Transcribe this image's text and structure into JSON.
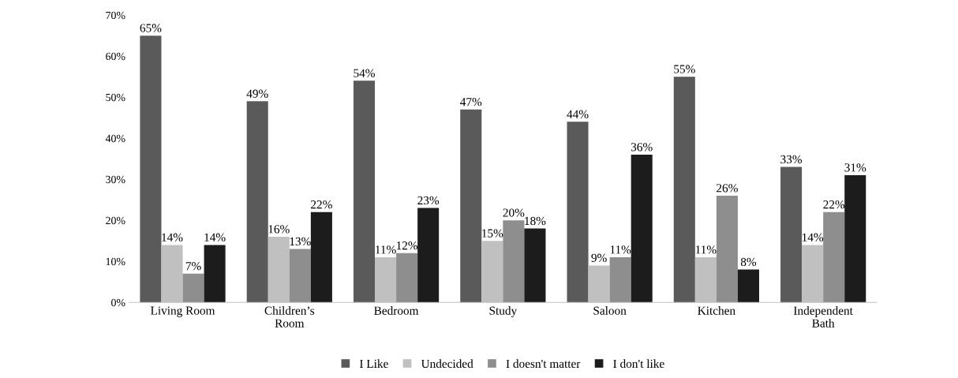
{
  "chart_data": {
    "type": "bar",
    "categories": [
      "Living Room",
      "Children’s\nRoom",
      "Bedroom",
      "Study",
      "Saloon",
      "Kitchen",
      "Independent\nBath"
    ],
    "series": [
      {
        "name": "I Like",
        "color": "#5a5a5a",
        "values": [
          65,
          49,
          54,
          47,
          44,
          55,
          33
        ],
        "value_labels": [
          "65%",
          "49%",
          "54%",
          "47%",
          "44%",
          "55%",
          "33%"
        ]
      },
      {
        "name": "Undecided",
        "color": "#c0c0c0",
        "values": [
          14,
          16,
          11,
          15,
          9,
          11,
          14
        ],
        "value_labels": [
          "14%",
          "16%",
          "11%",
          "15%",
          "9%",
          "11%",
          "14%"
        ]
      },
      {
        "name": "I doesn't matter",
        "color": "#8e8e8e",
        "values": [
          7,
          13,
          12,
          20,
          11,
          26,
          22
        ],
        "value_labels": [
          "7%",
          "13%",
          "12%",
          "20%",
          "11%",
          "26%",
          "22%"
        ]
      },
      {
        "name": "I don't like",
        "color": "#1c1c1c",
        "values": [
          14,
          22,
          23,
          18,
          36,
          8,
          31
        ],
        "value_labels": [
          "14%",
          "22%",
          "23%",
          "18%",
          "36%",
          "8%",
          "31%"
        ]
      }
    ],
    "ylim": [
      0,
      70
    ],
    "yticks": [
      {
        "value": 0,
        "label": "0%"
      },
      {
        "value": 10,
        "label": "10%"
      },
      {
        "value": 20,
        "label": "20%"
      },
      {
        "value": 30,
        "label": "30%"
      },
      {
        "value": 40,
        "label": "40%"
      },
      {
        "value": 50,
        "label": "50%"
      },
      {
        "value": 60,
        "label": "60%"
      },
      {
        "value": 70,
        "label": "70%"
      }
    ],
    "grid": false,
    "legend": "bottom"
  }
}
